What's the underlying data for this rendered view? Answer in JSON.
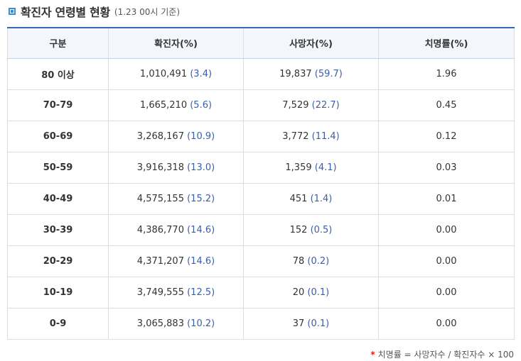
{
  "title": {
    "main": "확진자 연령별 현황",
    "sub": "(1.23 00시 기준)"
  },
  "table": {
    "headers": [
      "구분",
      "확진자(%)",
      "사망자(%)",
      "치명률(%)"
    ],
    "rows": [
      {
        "age": "80 이상",
        "cases": "1,010,491",
        "cases_pct": "(3.4)",
        "deaths": "19,837",
        "deaths_pct": "(59.7)",
        "fatality": "1.96"
      },
      {
        "age": "70-79",
        "cases": "1,665,210",
        "cases_pct": "(5.6)",
        "deaths": "7,529",
        "deaths_pct": "(22.7)",
        "fatality": "0.45"
      },
      {
        "age": "60-69",
        "cases": "3,268,167",
        "cases_pct": "(10.9)",
        "deaths": "3,772",
        "deaths_pct": "(11.4)",
        "fatality": "0.12"
      },
      {
        "age": "50-59",
        "cases": "3,916,318",
        "cases_pct": "(13.0)",
        "deaths": "1,359",
        "deaths_pct": "(4.1)",
        "fatality": "0.03"
      },
      {
        "age": "40-49",
        "cases": "4,575,155",
        "cases_pct": "(15.2)",
        "deaths": "451",
        "deaths_pct": "(1.4)",
        "fatality": "0.01"
      },
      {
        "age": "30-39",
        "cases": "4,386,770",
        "cases_pct": "(14.6)",
        "deaths": "152",
        "deaths_pct": "(0.5)",
        "fatality": "0.00"
      },
      {
        "age": "20-29",
        "cases": "4,371,207",
        "cases_pct": "(14.6)",
        "deaths": "78",
        "deaths_pct": "(0.2)",
        "fatality": "0.00"
      },
      {
        "age": "10-19",
        "cases": "3,749,555",
        "cases_pct": "(12.5)",
        "deaths": "20",
        "deaths_pct": "(0.1)",
        "fatality": "0.00"
      },
      {
        "age": "0-9",
        "cases": "3,065,883",
        "cases_pct": "(10.2)",
        "deaths": "37",
        "deaths_pct": "(0.1)",
        "fatality": "0.00"
      }
    ]
  },
  "footnote": {
    "marker": "*",
    "text": "치명률 = 사망자수 / 확진자수 × 100"
  },
  "colors": {
    "accent": "#3b66b6",
    "icon": "#3a8fd1",
    "value_blue": "#2a4f9e",
    "footnote_marker": "#e02020"
  }
}
